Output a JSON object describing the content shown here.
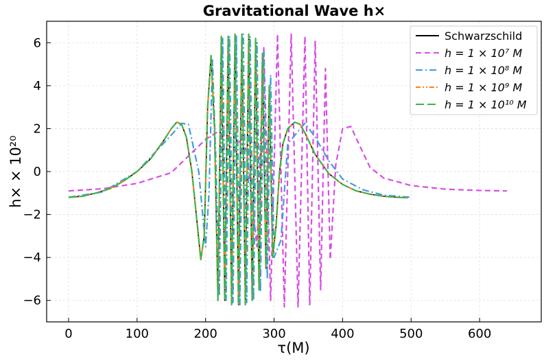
{
  "chart_data": {
    "type": "line",
    "title": "Gravitational Wave h×",
    "xlabel": "τ(M)",
    "ylabel": "h× × 10²⁰",
    "xlim": [
      -32,
      690
    ],
    "ylim": [
      -7.0,
      7.0
    ],
    "x_ticks": [
      0,
      100,
      200,
      300,
      400,
      500,
      600
    ],
    "y_ticks": [
      -6,
      -4,
      -2,
      0,
      2,
      4,
      6
    ],
    "x_tick_labels": [
      "0",
      "100",
      "200",
      "300",
      "400",
      "500",
      "600"
    ],
    "y_tick_labels": [
      "−6",
      "−4",
      "−2",
      "0",
      "2",
      "4",
      "6"
    ],
    "grid": true,
    "legend_position": "top-right",
    "series": [
      {
        "name": "Schwarzschild",
        "color": "#000000",
        "style": "solid",
        "x": [
          0,
          20,
          40,
          60,
          80,
          100,
          120,
          140,
          150,
          158,
          165,
          172,
          180,
          188,
          193,
          198,
          203,
          208,
          213,
          218,
          223,
          228,
          233,
          238,
          243,
          248,
          253,
          258,
          263,
          268,
          273,
          278,
          283,
          288,
          293,
          298,
          303,
          308,
          313,
          320,
          330,
          338,
          345,
          360,
          380,
          400,
          420,
          440,
          460,
          480,
          495
        ],
        "y": [
          -1.2,
          -1.15,
          -1.0,
          -0.8,
          -0.45,
          0.0,
          0.6,
          1.5,
          2.0,
          2.3,
          2.2,
          1.6,
          0.0,
          -2.5,
          -4.1,
          -3.0,
          3.0,
          5.4,
          2.0,
          -6.0,
          6.3,
          -6.0,
          6.3,
          -6.2,
          6.4,
          -6.2,
          6.4,
          -6.2,
          6.4,
          -6.0,
          6.2,
          -5.5,
          5.5,
          -4.5,
          4.0,
          -4.0,
          -2.5,
          0.0,
          1.3,
          2.0,
          2.3,
          2.2,
          1.8,
          0.8,
          -0.1,
          -0.6,
          -0.9,
          -1.05,
          -1.15,
          -1.2,
          -1.22
        ]
      },
      {
        "name": "h = 1 × 10⁷ M",
        "color": "#d94ce6",
        "style": "dashed",
        "x": [
          0,
          50,
          100,
          150,
          200,
          230,
          260,
          275,
          285,
          295,
          305,
          315,
          325,
          335,
          345,
          352,
          360,
          368,
          375,
          382,
          390,
          400,
          412,
          425,
          440,
          460,
          500,
          550,
          600,
          640
        ],
        "y": [
          -0.9,
          -0.8,
          -0.55,
          -0.05,
          1.5,
          2.1,
          1.0,
          -3.5,
          5.8,
          -6.0,
          6.4,
          -6.3,
          6.4,
          -6.3,
          6.3,
          -6.2,
          6.1,
          -5.5,
          4.8,
          -4.1,
          0.3,
          2.0,
          2.1,
          1.2,
          0.2,
          -0.3,
          -0.65,
          -0.82,
          -0.88,
          -0.9
        ]
      },
      {
        "name": "h = 1 × 10⁸ M",
        "color": "#3d9ddd",
        "style": "dashdot",
        "x": [
          0,
          50,
          100,
          150,
          165,
          175,
          190,
          200,
          205,
          210,
          215,
          220,
          225,
          230,
          235,
          240,
          245,
          250,
          255,
          260,
          265,
          270,
          275,
          280,
          285,
          290,
          295,
          300,
          310,
          320,
          345,
          360,
          380,
          400,
          430,
          460,
          500
        ],
        "y": [
          -1.2,
          -0.95,
          0.0,
          1.7,
          2.25,
          2.2,
          0.0,
          -3.5,
          -1.0,
          5.2,
          0.5,
          -5.8,
          6.2,
          -6.0,
          6.3,
          -6.1,
          6.3,
          -6.2,
          6.4,
          -6.1,
          6.3,
          -6.0,
          6.0,
          -5.6,
          5.6,
          -5.0,
          4.5,
          -4.0,
          -3.2,
          1.3,
          2.25,
          1.6,
          0.5,
          -0.35,
          -0.85,
          -1.1,
          -1.2
        ]
      },
      {
        "name": "h = 1 × 10⁹ M",
        "color": "#ff7f0e",
        "style": "dashdotdot",
        "x": [
          0,
          20,
          40,
          60,
          80,
          100,
          120,
          140,
          150,
          158,
          165,
          172,
          180,
          188,
          193,
          198,
          203,
          208,
          213,
          218,
          223,
          228,
          233,
          238,
          243,
          248,
          253,
          258,
          263,
          268,
          273,
          278,
          283,
          288,
          293,
          298,
          303,
          308,
          313,
          320,
          330,
          338,
          345,
          360,
          380,
          400,
          420,
          440,
          460,
          480,
          495
        ],
        "y": [
          -1.2,
          -1.15,
          -1.0,
          -0.8,
          -0.45,
          0.0,
          0.6,
          1.5,
          2.0,
          2.3,
          2.2,
          1.6,
          0.0,
          -2.5,
          -4.1,
          -3.0,
          3.0,
          5.4,
          2.0,
          -6.0,
          6.3,
          -6.0,
          6.3,
          -6.2,
          6.4,
          -6.2,
          6.4,
          -6.2,
          6.4,
          -6.0,
          6.2,
          -5.5,
          5.5,
          -4.5,
          4.0,
          -4.0,
          -2.5,
          0.0,
          1.3,
          2.0,
          2.3,
          2.2,
          1.8,
          0.8,
          -0.1,
          -0.6,
          -0.9,
          -1.05,
          -1.15,
          -1.2,
          -1.22
        ]
      },
      {
        "name": "h = 1 × 10¹⁰ M",
        "color": "#3cb44b",
        "style": "longdash",
        "x": [
          0,
          20,
          40,
          60,
          80,
          100,
          120,
          140,
          150,
          158,
          165,
          172,
          180,
          188,
          193,
          198,
          203,
          208,
          213,
          218,
          223,
          228,
          233,
          238,
          243,
          248,
          253,
          258,
          263,
          268,
          273,
          278,
          283,
          288,
          293,
          298,
          303,
          308,
          313,
          320,
          330,
          338,
          345,
          360,
          380,
          400,
          420,
          440,
          460,
          480,
          495
        ],
        "y": [
          -1.2,
          -1.15,
          -1.0,
          -0.8,
          -0.45,
          0.0,
          0.6,
          1.5,
          2.0,
          2.3,
          2.2,
          1.6,
          0.0,
          -2.5,
          -4.1,
          -3.0,
          3.0,
          5.4,
          2.0,
          -6.0,
          6.3,
          -6.0,
          6.3,
          -6.2,
          6.4,
          -6.2,
          6.4,
          -6.2,
          6.4,
          -6.0,
          6.2,
          -5.5,
          5.5,
          -4.5,
          4.0,
          -4.0,
          -2.5,
          0.0,
          1.3,
          2.0,
          2.3,
          2.2,
          1.8,
          0.8,
          -0.1,
          -0.6,
          -0.9,
          -1.05,
          -1.15,
          -1.2,
          -1.22
        ]
      }
    ]
  }
}
